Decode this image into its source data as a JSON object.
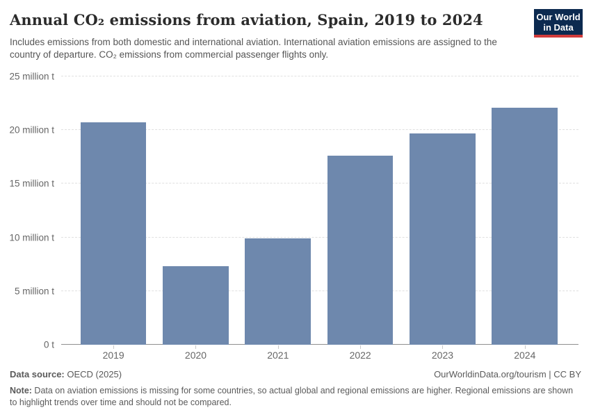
{
  "header": {
    "title": "Annual CO₂ emissions from aviation, Spain, 2019 to 2024",
    "subtitle": "Includes emissions from both domestic and international aviation. International aviation emissions are assigned to the country of departure. CO₂ emissions from commercial passenger flights only.",
    "logo": {
      "line1": "Our World",
      "line2": "in Data"
    }
  },
  "chart_data": {
    "type": "bar",
    "title": "Annual CO₂ emissions from aviation, Spain, 2019 to 2024",
    "categories": [
      "2019",
      "2020",
      "2021",
      "2022",
      "2023",
      "2024"
    ],
    "values": [
      20.7,
      7.3,
      9.9,
      17.6,
      19.7,
      22.1
    ],
    "unit": "million t",
    "xlabel": "",
    "ylabel": "",
    "ylim": [
      0,
      25
    ],
    "yticks": [
      {
        "value": 0,
        "label": "0 t"
      },
      {
        "value": 5,
        "label": "5 million t"
      },
      {
        "value": 10,
        "label": "10 million t"
      },
      {
        "value": 15,
        "label": "15 million t"
      },
      {
        "value": 20,
        "label": "20 million t"
      },
      {
        "value": 25,
        "label": "25 million t"
      }
    ],
    "grid": "horizontal-dashed",
    "legend": "none",
    "bar_color": "#6e88ad"
  },
  "footer": {
    "source_label": "Data source:",
    "source_value": " OECD (2025)",
    "attribution": "OurWorldinData.org/tourism | CC BY",
    "note_label": "Note:",
    "note_text": " Data on aviation emissions is missing for some countries, so actual global and regional emissions are higher. Regional emissions are shown to highlight trends over time and should not be compared."
  },
  "colors": {
    "bar": "#6e88ad",
    "logo_bg": "#0c2a50",
    "logo_stripe": "#d13b3b",
    "title_text": "#2b2b2b",
    "subtitle_text": "#555555",
    "axis_text": "#666666",
    "gridline": "#e0e0e0",
    "baseline": "#8f8f8f",
    "footer_text": "#5a5a5a"
  }
}
